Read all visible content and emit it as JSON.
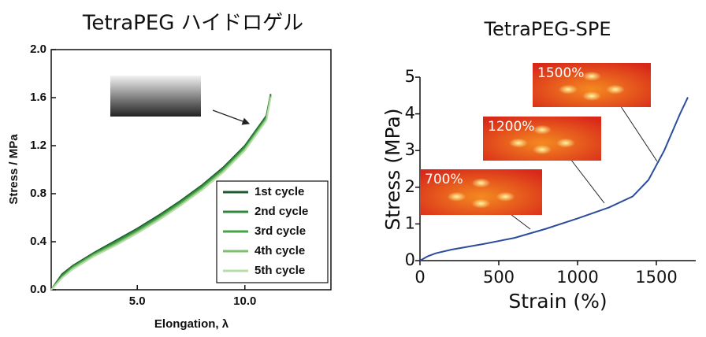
{
  "chart_data": [
    {
      "type": "line",
      "title": "TetraPEG ハイドロゲル",
      "x_label": "Elongation, λ",
      "y_label": "Stress / MPa",
      "x": [
        1,
        1.5,
        2,
        3,
        4,
        5,
        6,
        7,
        8,
        9,
        10,
        11,
        11.2
      ],
      "series": [
        {
          "name": "1st cycle",
          "color": "#1d5a30",
          "values": [
            0,
            0.13,
            0.2,
            0.31,
            0.41,
            0.51,
            0.62,
            0.74,
            0.87,
            1.02,
            1.2,
            1.45,
            1.63
          ]
        },
        {
          "name": "2nd cycle",
          "color": "#2f8a3c",
          "values": [
            0,
            0.12,
            0.19,
            0.3,
            0.4,
            0.5,
            0.61,
            0.73,
            0.86,
            1.01,
            1.19,
            1.44,
            1.62
          ]
        },
        {
          "name": "3rd cycle",
          "color": "#45a445",
          "values": [
            0,
            0.11,
            0.19,
            0.3,
            0.39,
            0.49,
            0.6,
            0.72,
            0.85,
            1.0,
            1.18,
            1.43,
            1.62
          ]
        },
        {
          "name": "4th cycle",
          "color": "#7dbf6c",
          "values": [
            0,
            0.1,
            0.18,
            0.29,
            0.38,
            0.48,
            0.59,
            0.71,
            0.84,
            0.99,
            1.17,
            1.42,
            1.61
          ]
        },
        {
          "name": "5th cycle",
          "color": "#b8dcaa",
          "values": [
            0,
            0.1,
            0.17,
            0.28,
            0.37,
            0.47,
            0.58,
            0.7,
            0.83,
            0.98,
            1.16,
            1.41,
            1.6
          ]
        }
      ],
      "xlim": [
        1,
        14
      ],
      "xticks": [
        {
          "value": 5,
          "label": "5.0"
        },
        {
          "value": 10,
          "label": "10.0"
        }
      ],
      "ylim": [
        0,
        2
      ],
      "yticks": [
        {
          "value": 0,
          "label": "0.0"
        },
        0.4,
        0.8,
        1.2,
        1.6,
        {
          "value": 2,
          "label": "2.0"
        }
      ],
      "legend": "lower right"
    },
    {
      "type": "line",
      "title": "TetraPEG-SPE",
      "x_label": "Strain (%)",
      "y_label": "Stress (MPa)",
      "x": [
        0,
        50,
        100,
        200,
        400,
        600,
        800,
        1000,
        1200,
        1350,
        1450,
        1550,
        1650,
        1700
      ],
      "series": [
        {
          "color": "#2b4d9c",
          "values": [
            0,
            0.12,
            0.2,
            0.3,
            0.45,
            0.62,
            0.87,
            1.15,
            1.45,
            1.75,
            2.2,
            3.0,
            4.0,
            4.45
          ]
        }
      ],
      "xlim": [
        0,
        1750
      ],
      "xticks": [
        0,
        500,
        1000,
        1500
      ],
      "ylim": [
        0,
        5
      ],
      "yticks": [
        0,
        1,
        2,
        3,
        4,
        5
      ],
      "annotations": [
        "1500%",
        "1200%",
        "700%"
      ]
    }
  ]
}
